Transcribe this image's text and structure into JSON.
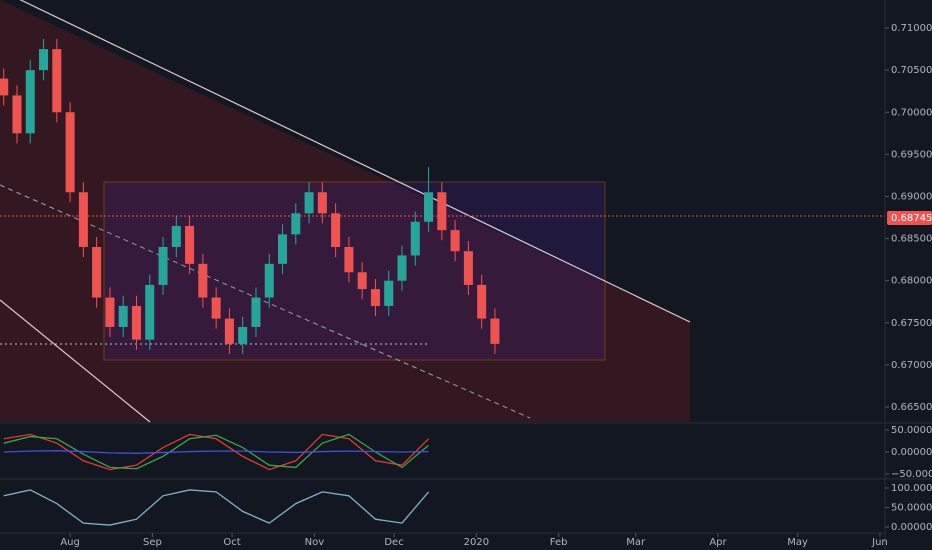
{
  "chart_data": [
    {
      "type": "candlestick",
      "x": [
        6,
        11,
        16,
        21,
        26,
        31,
        36,
        41,
        46,
        51,
        56,
        61,
        66,
        71,
        76,
        81,
        86,
        91,
        96,
        101,
        106,
        111,
        116,
        121,
        126,
        131,
        136,
        141,
        146,
        151,
        156,
        161,
        166,
        171,
        176,
        181,
        186,
        191
      ],
      "open": [
        0.704,
        0.702,
        0.6975,
        0.705,
        0.7075,
        0.7,
        0.6905,
        0.684,
        0.678,
        0.6745,
        0.677,
        0.673,
        0.6795,
        0.684,
        0.6865,
        0.682,
        0.678,
        0.6755,
        0.6725,
        0.6745,
        0.678,
        0.682,
        0.6855,
        0.688,
        0.6905,
        0.688,
        0.684,
        0.681,
        0.679,
        0.677,
        0.68,
        0.683,
        0.687,
        0.6905,
        0.686,
        0.6835,
        0.6795,
        0.6755
      ],
      "high": [
        0.7052,
        0.7032,
        0.7062,
        0.7087,
        0.7087,
        0.7012,
        0.6917,
        0.6852,
        0.6792,
        0.6782,
        0.6782,
        0.6807,
        0.6852,
        0.6877,
        0.6877,
        0.6832,
        0.6792,
        0.6767,
        0.6757,
        0.6792,
        0.6832,
        0.6867,
        0.6892,
        0.6917,
        0.6917,
        0.6892,
        0.6852,
        0.6822,
        0.6802,
        0.6812,
        0.6842,
        0.6882,
        0.6935,
        0.6917,
        0.6872,
        0.6847,
        0.6807,
        0.6767
      ],
      "low": [
        0.7008,
        0.6963,
        0.6963,
        0.7038,
        0.6988,
        0.6893,
        0.6828,
        0.6768,
        0.6733,
        0.6733,
        0.6718,
        0.6718,
        0.6783,
        0.6828,
        0.6808,
        0.6768,
        0.6743,
        0.6713,
        0.6713,
        0.6733,
        0.6768,
        0.6808,
        0.6843,
        0.6868,
        0.6868,
        0.6828,
        0.6798,
        0.6778,
        0.6758,
        0.6758,
        0.6788,
        0.6818,
        0.6858,
        0.6848,
        0.6823,
        0.6783,
        0.6743,
        0.6713
      ],
      "close": [
        0.702,
        0.6975,
        0.705,
        0.7075,
        0.7,
        0.6905,
        0.684,
        0.678,
        0.6745,
        0.677,
        0.673,
        0.6795,
        0.684,
        0.6865,
        0.682,
        0.678,
        0.6755,
        0.6725,
        0.6745,
        0.678,
        0.682,
        0.6855,
        0.688,
        0.6905,
        0.688,
        0.684,
        0.681,
        0.679,
        0.677,
        0.68,
        0.683,
        0.687,
        0.6905,
        0.686,
        0.6835,
        0.6795,
        0.6755,
        0.6725
      ],
      "up_color": "#26a69a",
      "down_color": "#ef5350",
      "last_price": 0.68745,
      "xlim": [
        4.6,
        337.9
      ],
      "xticks": [
        {
          "value": 31,
          "label": "Aug"
        },
        {
          "value": 62,
          "label": "Sep"
        },
        {
          "value": 92,
          "label": "Oct"
        },
        {
          "value": 123,
          "label": "Nov"
        },
        {
          "value": 153,
          "label": "Dec"
        },
        {
          "value": 184,
          "label": "2020"
        },
        {
          "value": 215,
          "label": "Feb"
        },
        {
          "value": 244,
          "label": "Mar"
        },
        {
          "value": 275,
          "label": "Apr"
        },
        {
          "value": 305,
          "label": "May"
        },
        {
          "value": 336,
          "label": "Jun"
        }
      ],
      "ylim": [
        0.66322,
        0.71333
      ],
      "yticks": [
        {
          "value": 0.665,
          "label": "0.66500"
        },
        {
          "value": 0.67,
          "label": "0.67000"
        },
        {
          "value": 0.675,
          "label": "0.67500"
        },
        {
          "value": 0.68,
          "label": "0.68000"
        },
        {
          "value": 0.685,
          "label": "0.68500"
        },
        {
          "value": 0.69,
          "label": "0.69000"
        },
        {
          "value": 0.695,
          "label": "0.69500"
        },
        {
          "value": 0.7,
          "label": "0.70000"
        },
        {
          "value": 0.705,
          "label": "0.70500"
        },
        {
          "value": 0.71,
          "label": "0.71000"
        }
      ]
    },
    {
      "type": "line",
      "x": [
        6,
        16,
        26,
        36,
        46,
        56,
        66,
        76,
        86,
        96,
        106,
        116,
        126,
        136,
        146,
        156,
        166
      ],
      "series": [
        {
          "color": "#e53935",
          "values": [
            30,
            40,
            20,
            -20,
            -40,
            -30,
            10,
            40,
            30,
            -10,
            -40,
            -20,
            40,
            30,
            -20,
            -30,
            30
          ]
        },
        {
          "color": "#43a047",
          "values": [
            20,
            35,
            30,
            -5,
            -35,
            -38,
            -10,
            30,
            38,
            10,
            -30,
            -35,
            20,
            40,
            0,
            -35,
            15
          ]
        },
        {
          "color": "#3f51d8",
          "values": [
            0,
            2,
            3,
            1,
            -2,
            -3,
            -1,
            1,
            2,
            2,
            0,
            -1,
            1,
            2,
            1,
            0,
            1
          ]
        }
      ],
      "xlim": [
        4.6,
        337.9
      ],
      "ylim": [
        -59.1,
        63.6
      ],
      "yticks": [
        {
          "value": 50,
          "label": "50.00000"
        },
        {
          "value": 0,
          "label": "0.00000"
        },
        {
          "value": -50,
          "label": "−50.00000"
        }
      ]
    },
    {
      "type": "line",
      "x": [
        6,
        16,
        26,
        36,
        46,
        56,
        66,
        76,
        86,
        96,
        106,
        116,
        126,
        136,
        146,
        156,
        166
      ],
      "series": [
        {
          "color": "#7fb3c9",
          "values": [
            80,
            95,
            60,
            10,
            5,
            20,
            80,
            95,
            90,
            40,
            10,
            60,
            90,
            80,
            20,
            10,
            90
          ]
        }
      ],
      "xlim": [
        4.6,
        337.9
      ],
      "ylim": [
        -12.8,
        120.5
      ],
      "yticks": [
        {
          "value": 100,
          "label": "100.00000"
        },
        {
          "value": 50,
          "label": "50.00000"
        },
        {
          "value": 0,
          "label": "0.00000"
        }
      ]
    }
  ]
}
